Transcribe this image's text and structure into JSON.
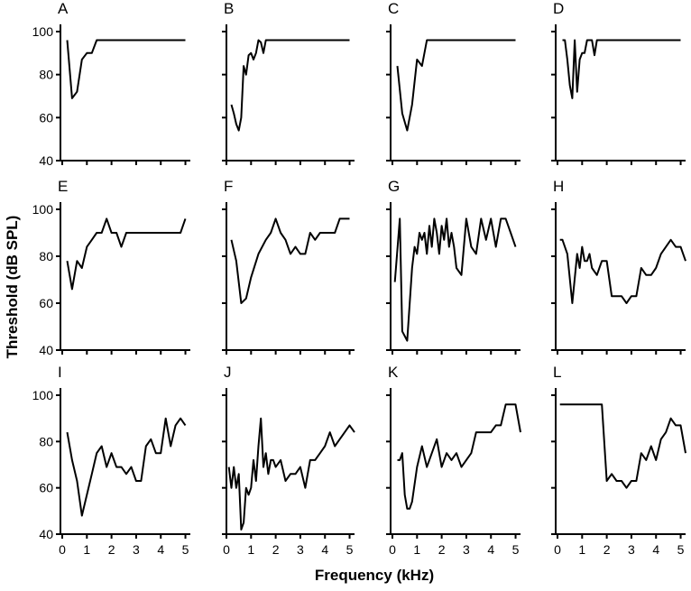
{
  "figure": {
    "xlabel": "Frequency (kHz)",
    "ylabel": "Threshold (dB SPL)"
  },
  "chart_data": [
    {
      "type": "line",
      "panel": "A",
      "xlim": [
        0,
        5.2
      ],
      "ylim": [
        40,
        100
      ],
      "xticks": [
        0,
        1,
        2,
        3,
        4,
        5
      ],
      "yticks": [
        40,
        60,
        80,
        100
      ],
      "x": [
        0.2,
        0.4,
        0.6,
        0.8,
        1.0,
        1.2,
        1.4,
        1.6,
        5.0
      ],
      "y": [
        96,
        69,
        72,
        87,
        90,
        90,
        96,
        96,
        96
      ]
    },
    {
      "type": "line",
      "panel": "B",
      "xlim": [
        0,
        5.2
      ],
      "ylim": [
        40,
        100
      ],
      "xticks": [
        0,
        1,
        2,
        3,
        4,
        5
      ],
      "yticks": [
        40,
        60,
        80,
        100
      ],
      "x": [
        0.2,
        0.3,
        0.4,
        0.5,
        0.6,
        0.7,
        0.8,
        0.9,
        1.0,
        1.1,
        1.2,
        1.3,
        1.4,
        1.5,
        1.6,
        1.7,
        1.8,
        5.0
      ],
      "y": [
        66,
        62,
        57,
        54,
        60,
        84,
        80,
        89,
        90,
        87,
        90,
        96,
        95,
        90,
        96,
        96,
        96,
        96
      ]
    },
    {
      "type": "line",
      "panel": "C",
      "xlim": [
        0,
        5.2
      ],
      "ylim": [
        40,
        100
      ],
      "xticks": [
        0,
        1,
        2,
        3,
        4,
        5
      ],
      "yticks": [
        40,
        60,
        80,
        100
      ],
      "x": [
        0.2,
        0.4,
        0.6,
        0.8,
        1.0,
        1.2,
        1.4,
        5.0
      ],
      "y": [
        84,
        62,
        54,
        66,
        87,
        84,
        96,
        96
      ]
    },
    {
      "type": "line",
      "panel": "D",
      "xlim": [
        0,
        5.2
      ],
      "ylim": [
        40,
        100
      ],
      "xticks": [
        0,
        1,
        2,
        3,
        4,
        5
      ],
      "yticks": [
        40,
        60,
        80,
        100
      ],
      "x": [
        0.2,
        0.3,
        0.4,
        0.5,
        0.6,
        0.7,
        0.8,
        0.9,
        1.0,
        1.1,
        1.2,
        1.3,
        1.4,
        1.5,
        1.6,
        5.0
      ],
      "y": [
        96,
        96,
        87,
        75,
        69,
        96,
        72,
        87,
        90,
        90,
        96,
        96,
        96,
        89,
        96,
        96
      ]
    },
    {
      "type": "line",
      "panel": "E",
      "xlim": [
        0,
        5.2
      ],
      "ylim": [
        40,
        100
      ],
      "xticks": [
        0,
        1,
        2,
        3,
        4,
        5
      ],
      "yticks": [
        40,
        60,
        80,
        100
      ],
      "x": [
        0.2,
        0.4,
        0.6,
        0.8,
        1.0,
        1.2,
        1.4,
        1.6,
        1.8,
        2.0,
        2.2,
        2.4,
        2.6,
        2.8,
        3.0,
        3.5,
        4.0,
        4.5,
        4.8,
        5.0
      ],
      "y": [
        78,
        66,
        78,
        75,
        84,
        87,
        90,
        90,
        96,
        90,
        90,
        84,
        90,
        90,
        90,
        90,
        90,
        90,
        90,
        96
      ]
    },
    {
      "type": "line",
      "panel": "F",
      "xlim": [
        0,
        5.2
      ],
      "ylim": [
        40,
        100
      ],
      "xticks": [
        0,
        1,
        2,
        3,
        4,
        5
      ],
      "yticks": [
        40,
        60,
        80,
        100
      ],
      "x": [
        0.2,
        0.4,
        0.6,
        0.8,
        1.0,
        1.3,
        1.6,
        1.8,
        2.0,
        2.2,
        2.4,
        2.6,
        2.8,
        3.0,
        3.2,
        3.4,
        3.6,
        3.8,
        4.0,
        4.2,
        4.4,
        4.6,
        4.8,
        5.0
      ],
      "y": [
        87,
        78,
        60,
        62,
        71,
        81,
        87,
        90,
        96,
        90,
        87,
        81,
        84,
        81,
        81,
        90,
        87,
        90,
        90,
        90,
        90,
        96,
        96,
        96
      ]
    },
    {
      "type": "line",
      "panel": "G",
      "xlim": [
        0,
        5.2
      ],
      "ylim": [
        40,
        100
      ],
      "xticks": [
        0,
        1,
        2,
        3,
        4,
        5
      ],
      "yticks": [
        40,
        60,
        80,
        100
      ],
      "x": [
        0.1,
        0.3,
        0.4,
        0.6,
        0.8,
        0.9,
        1.0,
        1.1,
        1.2,
        1.3,
        1.4,
        1.5,
        1.6,
        1.7,
        1.8,
        1.9,
        2.0,
        2.1,
        2.2,
        2.3,
        2.4,
        2.5,
        2.6,
        2.8,
        3.0,
        3.2,
        3.4,
        3.6,
        3.8,
        4.0,
        4.2,
        4.4,
        4.6,
        4.8,
        5.0
      ],
      "y": [
        69,
        96,
        48,
        44,
        75,
        84,
        81,
        90,
        87,
        90,
        81,
        93,
        84,
        96,
        90,
        81,
        93,
        87,
        96,
        84,
        90,
        84,
        75,
        72,
        96,
        84,
        81,
        96,
        87,
        96,
        84,
        96,
        96,
        90,
        84
      ]
    },
    {
      "type": "line",
      "panel": "H",
      "xlim": [
        0,
        5.2
      ],
      "ylim": [
        40,
        100
      ],
      "xticks": [
        0,
        1,
        2,
        3,
        4,
        5
      ],
      "yticks": [
        40,
        60,
        80,
        100
      ],
      "x": [
        0.1,
        0.2,
        0.4,
        0.6,
        0.8,
        0.9,
        1.0,
        1.1,
        1.2,
        1.3,
        1.4,
        1.6,
        1.8,
        2.0,
        2.2,
        2.4,
        2.6,
        2.8,
        3.0,
        3.2,
        3.4,
        3.6,
        3.8,
        4.0,
        4.2,
        4.4,
        4.6,
        4.8,
        5.0,
        5.2
      ],
      "y": [
        87,
        87,
        81,
        60,
        81,
        75,
        84,
        78,
        78,
        81,
        75,
        72,
        78,
        78,
        63,
        63,
        63,
        60,
        63,
        63,
        75,
        72,
        72,
        75,
        81,
        84,
        87,
        84,
        84,
        78
      ]
    },
    {
      "type": "line",
      "panel": "I",
      "xlim": [
        0,
        5.2
      ],
      "ylim": [
        40,
        100
      ],
      "xticks": [
        0,
        1,
        2,
        3,
        4,
        5
      ],
      "yticks": [
        40,
        60,
        80,
        100
      ],
      "x": [
        0.2,
        0.4,
        0.6,
        0.8,
        1.0,
        1.2,
        1.4,
        1.6,
        1.8,
        2.0,
        2.2,
        2.4,
        2.6,
        2.8,
        3.0,
        3.2,
        3.4,
        3.6,
        3.8,
        4.0,
        4.2,
        4.4,
        4.6,
        4.8,
        5.0
      ],
      "y": [
        84,
        72,
        63,
        48,
        57,
        66,
        75,
        78,
        69,
        75,
        69,
        69,
        66,
        69,
        63,
        63,
        78,
        81,
        75,
        75,
        90,
        78,
        87,
        90,
        87
      ]
    },
    {
      "type": "line",
      "panel": "J",
      "xlim": [
        0,
        5.2
      ],
      "ylim": [
        40,
        100
      ],
      "xticks": [
        0,
        1,
        2,
        3,
        4,
        5
      ],
      "yticks": [
        40,
        60,
        80,
        100
      ],
      "x": [
        0.1,
        0.2,
        0.3,
        0.4,
        0.5,
        0.6,
        0.7,
        0.8,
        0.9,
        1.0,
        1.1,
        1.2,
        1.3,
        1.4,
        1.5,
        1.6,
        1.7,
        1.8,
        1.9,
        2.0,
        2.2,
        2.4,
        2.6,
        2.8,
        3.0,
        3.2,
        3.4,
        3.6,
        3.8,
        4.0,
        4.2,
        4.4,
        4.6,
        4.8,
        5.0,
        5.2
      ],
      "y": [
        69,
        60,
        69,
        60,
        66,
        42,
        45,
        60,
        57,
        60,
        72,
        63,
        78,
        90,
        69,
        75,
        66,
        72,
        72,
        69,
        72,
        63,
        66,
        66,
        69,
        60,
        72,
        72,
        75,
        78,
        84,
        78,
        81,
        84,
        87,
        84
      ]
    },
    {
      "type": "line",
      "panel": "K",
      "xlim": [
        0,
        5.2
      ],
      "ylim": [
        40,
        100
      ],
      "xticks": [
        0,
        1,
        2,
        3,
        4,
        5
      ],
      "yticks": [
        40,
        60,
        80,
        100
      ],
      "x": [
        0.2,
        0.3,
        0.4,
        0.5,
        0.6,
        0.7,
        0.8,
        1.0,
        1.2,
        1.4,
        1.6,
        1.8,
        2.0,
        2.2,
        2.4,
        2.6,
        2.8,
        3.0,
        3.2,
        3.4,
        3.6,
        3.8,
        4.0,
        4.2,
        4.4,
        4.6,
        4.8,
        5.0,
        5.2
      ],
      "y": [
        72,
        72,
        75,
        57,
        51,
        51,
        54,
        69,
        78,
        69,
        75,
        81,
        69,
        75,
        72,
        75,
        69,
        72,
        75,
        84,
        84,
        84,
        84,
        87,
        87,
        96,
        96,
        96,
        84
      ]
    },
    {
      "type": "line",
      "panel": "L",
      "xlim": [
        0,
        5.2
      ],
      "ylim": [
        40,
        100
      ],
      "xticks": [
        0,
        1,
        2,
        3,
        4,
        5
      ],
      "yticks": [
        40,
        60,
        80,
        100
      ],
      "x": [
        0.1,
        0.5,
        1.0,
        1.5,
        1.8,
        2.0,
        2.2,
        2.4,
        2.6,
        2.8,
        3.0,
        3.2,
        3.4,
        3.6,
        3.8,
        4.0,
        4.2,
        4.4,
        4.6,
        4.8,
        5.0,
        5.2
      ],
      "y": [
        96,
        96,
        96,
        96,
        96,
        63,
        66,
        63,
        63,
        60,
        63,
        63,
        75,
        72,
        78,
        72,
        81,
        84,
        90,
        87,
        87,
        75
      ]
    }
  ]
}
